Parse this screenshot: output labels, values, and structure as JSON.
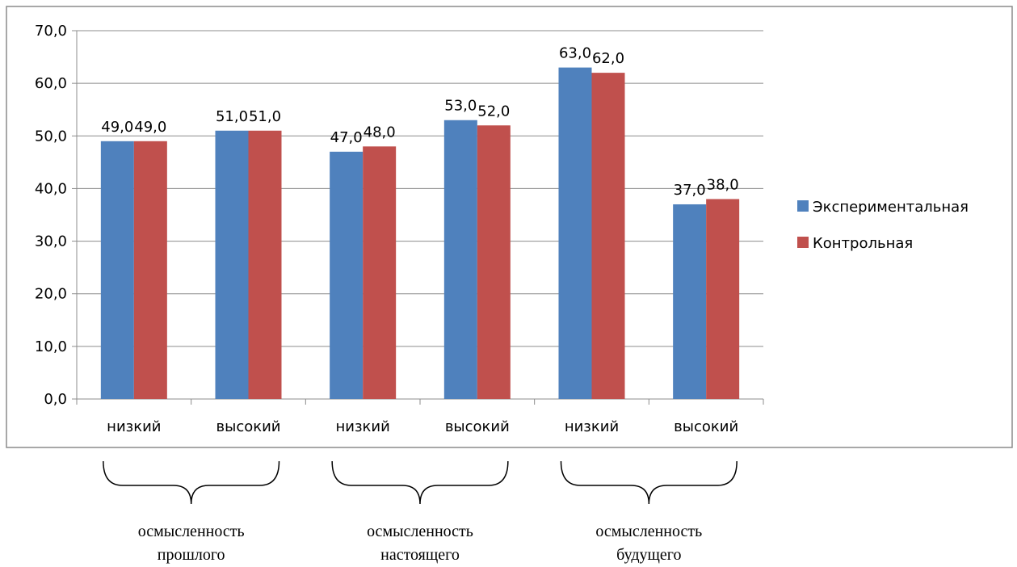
{
  "chart_data": {
    "type": "bar",
    "categories": [
      "низкий",
      "высокий",
      "низкий",
      "высокий",
      "низкий",
      "высокий"
    ],
    "series": [
      {
        "name": "Экспериментальная",
        "values": [
          49.0,
          51.0,
          47.0,
          53.0,
          63.0,
          37.0
        ],
        "color": "#4F81BD"
      },
      {
        "name": "Контрольная",
        "values": [
          49.0,
          51.0,
          48.0,
          52.0,
          62.0,
          38.0
        ],
        "color": "#C0504D"
      }
    ],
    "data_labels": [
      [
        "49,0",
        "51,0",
        "47,0",
        "53,0",
        "63,0",
        "37,0"
      ],
      [
        "49,0",
        "51,0",
        "48,0",
        "52,0",
        "62,0",
        "38,0"
      ]
    ],
    "ylim": [
      0,
      70
    ],
    "y_ticks": [
      "0,0",
      "10,0",
      "20,0",
      "30,0",
      "40,0",
      "50,0",
      "60,0",
      "70,0"
    ],
    "grid": true,
    "legend_position": "right",
    "groups": [
      {
        "line1": "осмысленность",
        "line2": "прошлого",
        "categories": [
          0,
          1
        ]
      },
      {
        "line1": "осмысленность",
        "line2": "настоящего",
        "categories": [
          2,
          3
        ]
      },
      {
        "line1": "осмысленность",
        "line2": "будущего",
        "categories": [
          4,
          5
        ]
      }
    ]
  }
}
